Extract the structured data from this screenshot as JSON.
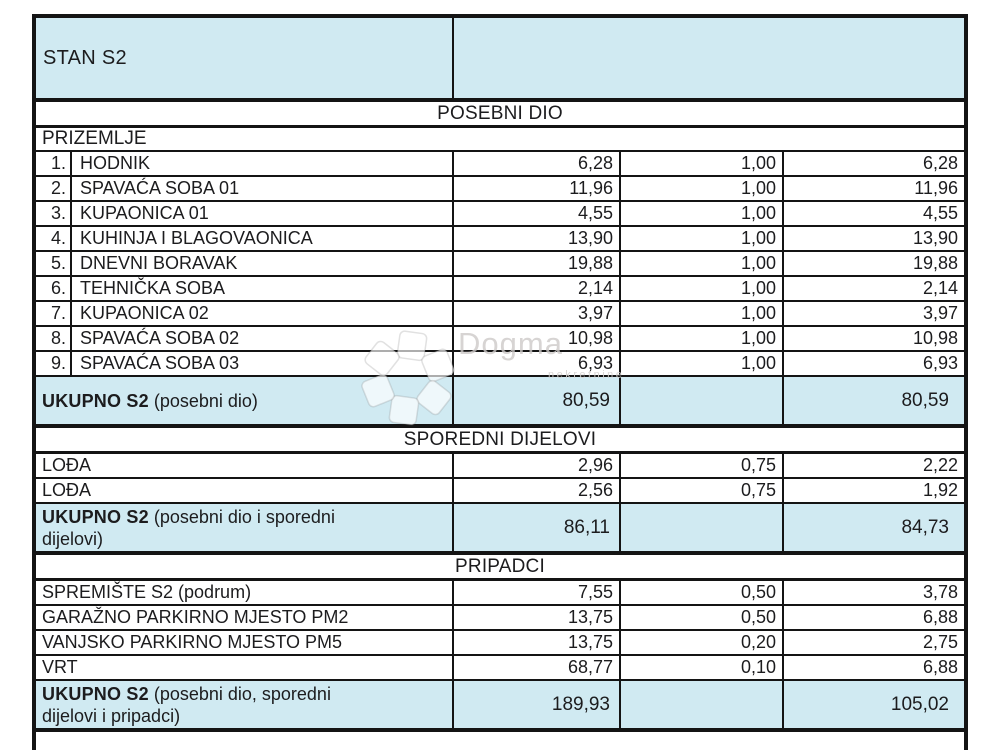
{
  "colors": {
    "accent_blue": "#d0eaf2",
    "border_black": "#141414"
  },
  "watermark": {
    "brand": "Dogma",
    "sub": "nekretnine"
  },
  "table": {
    "rows": [
      {
        "type": "title",
        "label": "STAN S2"
      },
      {
        "type": "section",
        "label": "POSEBNI DIO"
      },
      {
        "type": "section_left",
        "label": "PRIZEMLJE"
      },
      {
        "type": "data",
        "num": "1.",
        "name": "HODNIK",
        "area": "6,28",
        "coef": "1,00",
        "share": "6,28"
      },
      {
        "type": "data",
        "num": "2.",
        "name": "SPAVAĆA SOBA 01",
        "area": "11,96",
        "coef": "1,00",
        "share": "11,96"
      },
      {
        "type": "data",
        "num": "3.",
        "name": "KUPAONICA 01",
        "area": "4,55",
        "coef": "1,00",
        "share": "4,55"
      },
      {
        "type": "data",
        "num": "4.",
        "name": "KUHINJA I BLAGOVAONICA",
        "area": "13,90",
        "coef": "1,00",
        "share": "13,90"
      },
      {
        "type": "data",
        "num": "5.",
        "name": "DNEVNI BORAVAK",
        "area": "19,88",
        "coef": "1,00",
        "share": "19,88"
      },
      {
        "type": "data",
        "num": "6.",
        "name": "TEHNIČKA SOBA",
        "area": "2,14",
        "coef": "1,00",
        "share": "2,14"
      },
      {
        "type": "data",
        "num": "7.",
        "name": "KUPAONICA 02",
        "area": "3,97",
        "coef": "1,00",
        "share": "3,97"
      },
      {
        "type": "data",
        "num": "8.",
        "name": "SPAVAĆA SOBA 02",
        "area": "10,98",
        "coef": "1,00",
        "share": "10,98"
      },
      {
        "type": "data",
        "num": "9.",
        "name": "SPAVAĆA SOBA 03",
        "area": "6,93",
        "coef": "1,00",
        "share": "6,93"
      },
      {
        "type": "total",
        "bold": "UKUPNO S2",
        "rest": " (posebni dio)",
        "area": "80,59",
        "share": "80,59"
      },
      {
        "type": "section",
        "label": "SPOREDNI DIJELOVI"
      },
      {
        "type": "data",
        "num": "",
        "name": "LOĐA",
        "area": "2,96",
        "coef": "0,75",
        "share": "2,22"
      },
      {
        "type": "data",
        "num": "",
        "name": "LOĐA",
        "area": "2,56",
        "coef": "0,75",
        "share": "1,92"
      },
      {
        "type": "total",
        "bold": "UKUPNO S2",
        "rest": " (posebni dio i sporedni dijelovi)",
        "area": "86,11",
        "share": "84,73"
      },
      {
        "type": "section",
        "label": "PRIPADCI"
      },
      {
        "type": "data",
        "num": "",
        "name": "SPREMIŠTE S2 (podrum)",
        "area": "7,55",
        "coef": "0,50",
        "share": "3,78"
      },
      {
        "type": "data",
        "num": "",
        "name": "GARAŽNO PARKIRNO MJESTO PM2",
        "area": "13,75",
        "coef": "0,50",
        "share": "6,88"
      },
      {
        "type": "data",
        "num": "",
        "name": "VANJSKO PARKIRNO MJESTO PM5",
        "area": "13,75",
        "coef": "0,20",
        "share": "2,75"
      },
      {
        "type": "data",
        "num": "",
        "name": "VRT",
        "area": "68,77",
        "coef": "0,10",
        "share": "6,88"
      },
      {
        "type": "total",
        "bold": "UKUPNO S2",
        "rest": " (posebni dio, sporedni dijelovi i pripadci)",
        "area": "189,93",
        "share": "105,02"
      },
      {
        "type": "spacer"
      }
    ]
  }
}
